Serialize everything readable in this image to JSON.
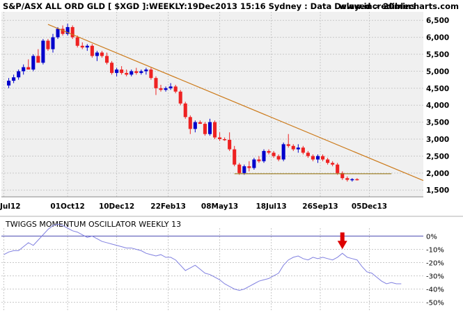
{
  "header": {
    "title": "S&P/ASX ALL ORD GLD [ $XGD ]:WEEKLY:19Dec2013 15:16 Sydney : Data Delayed > 20mins",
    "site": "www.incrediblecharts.com"
  },
  "colors": {
    "background": "#ffffff",
    "plot_background": "#f0f0f0",
    "grid": "#c8c8c8",
    "up_candle": "#0000cc",
    "down_candle": "#ee2222",
    "trendline": "#cc7a1a",
    "support_line": "#9a7a1a",
    "oscillator_line": "#8080e0",
    "zero_line": "#4a4ab0",
    "arrow": "#dd0000"
  },
  "chart_data": [
    {
      "type": "candlestick",
      "title": "S&P/ASX ALL ORD GLD [ $XGD ]:WEEKLY:19Dec2013 15:16 Sydney : Data Delayed > 20mins",
      "x_unit": "weeks",
      "x_start_label": "Jul12",
      "x_tick_labels": [
        {
          "label": "Jul12",
          "week": 0
        },
        {
          "label": "01Oct12",
          "week": 13
        },
        {
          "label": "10Dec12",
          "week": 23
        },
        {
          "label": "22Feb13",
          "week": 33.5
        },
        {
          "label": "08May13",
          "week": 44
        },
        {
          "label": "18Jul13",
          "week": 54.5
        },
        {
          "label": "26Sep13",
          "week": 64.5
        },
        {
          "label": "05Dec13",
          "week": 74.5
        }
      ],
      "y_tick_labels": [
        "1,500",
        "2,000",
        "2,500",
        "3,000",
        "3,500",
        "4,000",
        "4,500",
        "5,000",
        "5,500",
        "6,000",
        "6,500"
      ],
      "ylim": [
        1300,
        6750
      ],
      "xlim": [
        -0.5,
        85.5
      ],
      "grid": true,
      "candles": [
        [
          4580,
          4800,
          4500,
          4720
        ],
        [
          4720,
          4900,
          4650,
          4820
        ],
        [
          4820,
          5050,
          4750,
          5000
        ],
        [
          5000,
          5200,
          4900,
          5120
        ],
        [
          5120,
          5350,
          5050,
          5050
        ],
        [
          5050,
          5500,
          5000,
          5450
        ],
        [
          5450,
          5650,
          5300,
          5250
        ],
        [
          5250,
          5950,
          5200,
          5900
        ],
        [
          5900,
          5950,
          5600,
          5650
        ],
        [
          5650,
          6100,
          5550,
          6000
        ],
        [
          6000,
          6300,
          5950,
          6250
        ],
        [
          6250,
          6350,
          6050,
          6100
        ],
        [
          6100,
          6400,
          6050,
          6300
        ],
        [
          6300,
          6350,
          5950,
          6000
        ],
        [
          6000,
          6050,
          5700,
          5750
        ],
        [
          5750,
          5850,
          5650,
          5700
        ],
        [
          5700,
          5800,
          5600,
          5750
        ],
        [
          5750,
          5800,
          5400,
          5450
        ],
        [
          5450,
          5600,
          5300,
          5550
        ],
        [
          5550,
          5600,
          5400,
          5450
        ],
        [
          5450,
          5550,
          5200,
          5250
        ],
        [
          5250,
          5300,
          4900,
          4950
        ],
        [
          4950,
          5100,
          4850,
          5050
        ],
        [
          5050,
          5150,
          4900,
          4950
        ],
        [
          4950,
          5050,
          4850,
          4900
        ],
        [
          4900,
          5050,
          4850,
          5000
        ],
        [
          5000,
          5100,
          4900,
          4950
        ],
        [
          4950,
          5050,
          4900,
          5000
        ],
        [
          5000,
          5100,
          4900,
          5050
        ],
        [
          5050,
          5100,
          4750,
          4800
        ],
        [
          4800,
          4850,
          4300,
          4500
        ],
        [
          4500,
          4600,
          4400,
          4450
        ],
        [
          4450,
          4550,
          4400,
          4500
        ],
        [
          4500,
          4650,
          4450,
          4550
        ],
        [
          4550,
          4600,
          4350,
          4400
        ],
        [
          4400,
          4450,
          4000,
          4050
        ],
        [
          4050,
          4100,
          3600,
          3650
        ],
        [
          3650,
          3700,
          3150,
          3300
        ],
        [
          3300,
          3550,
          3200,
          3500
        ],
        [
          3500,
          3550,
          3450,
          3450
        ],
        [
          3450,
          3500,
          3100,
          3150
        ],
        [
          3150,
          3600,
          3100,
          3500
        ],
        [
          3500,
          3550,
          3000,
          3050
        ],
        [
          3050,
          3200,
          2950,
          3000
        ],
        [
          3000,
          3050,
          2950,
          2980
        ],
        [
          2980,
          3200,
          2650,
          2700
        ],
        [
          2700,
          2800,
          2200,
          2250
        ],
        [
          2250,
          2300,
          1950,
          2000
        ],
        [
          2000,
          2250,
          1950,
          2200
        ],
        [
          2200,
          2350,
          2050,
          2150
        ],
        [
          2150,
          2450,
          2100,
          2400
        ],
        [
          2400,
          2500,
          2300,
          2350
        ],
        [
          2350,
          2700,
          2300,
          2650
        ],
        [
          2650,
          2700,
          2550,
          2600
        ],
        [
          2600,
          2650,
          2450,
          2500
        ],
        [
          2500,
          2550,
          2350,
          2400
        ],
        [
          2400,
          2900,
          2350,
          2850
        ],
        [
          2850,
          3150,
          2750,
          2800
        ],
        [
          2800,
          2850,
          2650,
          2700
        ],
        [
          2700,
          2850,
          2600,
          2750
        ],
        [
          2750,
          2800,
          2550,
          2600
        ],
        [
          2600,
          2650,
          2450,
          2500
        ],
        [
          2500,
          2550,
          2350,
          2400
        ],
        [
          2400,
          2550,
          2300,
          2500
        ],
        [
          2500,
          2550,
          2350,
          2400
        ],
        [
          2400,
          2450,
          2250,
          2300
        ],
        [
          2300,
          2350,
          2200,
          2250
        ],
        [
          2250,
          2300,
          1950,
          2000
        ],
        [
          2000,
          2050,
          1800,
          1850
        ],
        [
          1850,
          1900,
          1750,
          1800
        ],
        [
          1800,
          1850,
          1750,
          1820
        ],
        [
          1820,
          1850,
          1780,
          1810
        ]
      ],
      "annotations": [
        {
          "kind": "trendline",
          "from": {
            "week": 9,
            "value": 6380
          },
          "to": {
            "week": 85.5,
            "value": 1780
          }
        },
        {
          "kind": "support",
          "from": {
            "week": 47,
            "value": 1980
          },
          "to": {
            "week": 79,
            "value": 1980
          }
        }
      ]
    },
    {
      "type": "line",
      "title": "TWIGGS MOMENTUM OSCILLATOR WEEKLY 13",
      "y_tick_labels": [
        "0%",
        "-10%",
        "-20%",
        "-30%",
        "-40%",
        "-50%"
      ],
      "ylim": [
        -57,
        6
      ],
      "zero_line": 0,
      "series": [
        {
          "values": [
            -14,
            -12,
            -11,
            -11,
            -8,
            -5,
            -7,
            -3,
            1,
            5,
            8,
            9,
            8,
            6,
            4,
            3,
            1,
            -1,
            0,
            -2,
            -4,
            -5,
            -6,
            -7,
            -8,
            -9,
            -9,
            -10,
            -11,
            -13,
            -14,
            -15,
            -14,
            -16,
            -16,
            -18,
            -22,
            -26,
            -24,
            -22,
            -25,
            -28,
            -29,
            -31,
            -33,
            -36,
            -38,
            -40,
            -41,
            -40,
            -38,
            -36,
            -34,
            -33,
            -32,
            -30,
            -28,
            -22,
            -18,
            -16,
            -15,
            -17,
            -18,
            -16,
            -17,
            -16,
            -17,
            -18,
            -16,
            -13,
            -16,
            -17,
            -18,
            -23,
            -27,
            -28,
            -31,
            -34,
            -36,
            -35,
            -36,
            -36
          ]
        }
      ],
      "annotations": [
        {
          "kind": "arrow-down",
          "week": 69
        }
      ]
    }
  ]
}
